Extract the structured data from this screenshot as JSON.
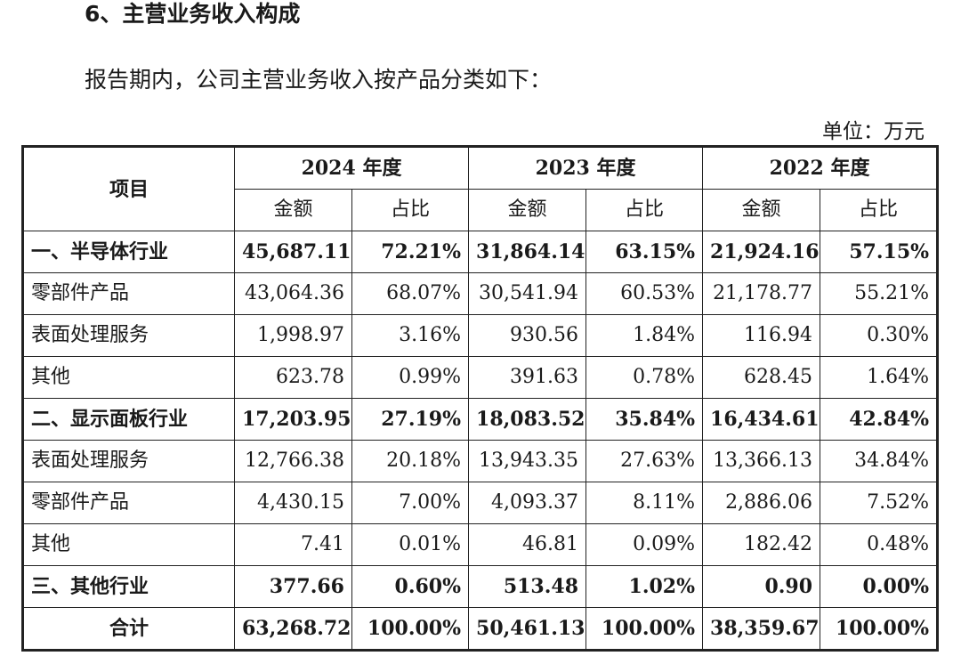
{
  "heading": "6、主营业务收入构成",
  "intro": "报告期内，公司主营业务收入按产品分类如下：",
  "unit": "单位：万元",
  "table": {
    "item_header": "项目",
    "years": [
      "2024 年度",
      "2023 年度",
      "2022 年度"
    ],
    "sub_amount": "金额",
    "sub_ratio": "占比",
    "rows": [
      {
        "label": "一、半导体行业",
        "bold": true,
        "values": [
          "45,687.11",
          "72.21%",
          "31,864.14",
          "63.15%",
          "21,924.16",
          "57.15%"
        ]
      },
      {
        "label": "零部件产品",
        "bold": false,
        "values": [
          "43,064.36",
          "68.07%",
          "30,541.94",
          "60.53%",
          "21,178.77",
          "55.21%"
        ]
      },
      {
        "label": "表面处理服务",
        "bold": false,
        "values": [
          "1,998.97",
          "3.16%",
          "930.56",
          "1.84%",
          "116.94",
          "0.30%"
        ]
      },
      {
        "label": "其他",
        "bold": false,
        "values": [
          "623.78",
          "0.99%",
          "391.63",
          "0.78%",
          "628.45",
          "1.64%"
        ]
      },
      {
        "label": "二、显示面板行业",
        "bold": true,
        "values": [
          "17,203.95",
          "27.19%",
          "18,083.52",
          "35.84%",
          "16,434.61",
          "42.84%"
        ]
      },
      {
        "label": "表面处理服务",
        "bold": false,
        "values": [
          "12,766.38",
          "20.18%",
          "13,943.35",
          "27.63%",
          "13,366.13",
          "34.84%"
        ]
      },
      {
        "label": "零部件产品",
        "bold": false,
        "values": [
          "4,430.15",
          "7.00%",
          "4,093.37",
          "8.11%",
          "2,886.06",
          "7.52%"
        ]
      },
      {
        "label": "其他",
        "bold": false,
        "values": [
          "7.41",
          "0.01%",
          "46.81",
          "0.09%",
          "182.42",
          "0.48%"
        ]
      },
      {
        "label": "三、其他行业",
        "bold": true,
        "values": [
          "377.66",
          "0.60%",
          "513.48",
          "1.02%",
          "0.90",
          "0.00%"
        ]
      },
      {
        "label": "合计",
        "bold": true,
        "total": true,
        "values": [
          "63,268.72",
          "100.00%",
          "50,461.13",
          "100.00%",
          "38,359.67",
          "100.00%"
        ]
      }
    ]
  }
}
